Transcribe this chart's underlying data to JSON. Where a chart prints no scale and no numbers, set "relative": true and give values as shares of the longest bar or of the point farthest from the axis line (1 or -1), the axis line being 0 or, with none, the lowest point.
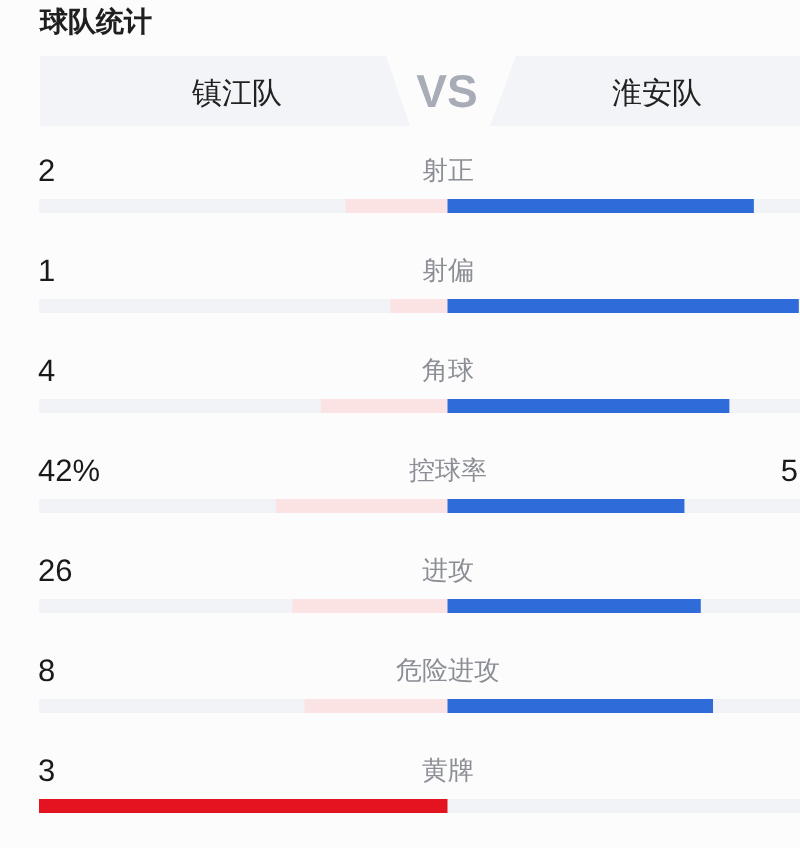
{
  "chart_data": [
    {
      "type": "other",
      "title": "球队统计",
      "annotations": [
        "镇江队",
        "VS",
        "淮安队"
      ]
    },
    {
      "type": "bar",
      "orientation": "horizontal",
      "relative": true,
      "stacked": true,
      "grid": "y",
      "categories": [
        "射正",
        "射偏",
        "角球",
        "控球率",
        "进攻",
        "危险进攻",
        "黄牌"
      ],
      "series": [
        {
          "colors": [
            "#fbe3e3",
            "#fbe3e3",
            "#fbe3e3",
            "#fbe3e3",
            "#fbe3e3",
            "#fbe3e3",
            "#e3131f"
          ],
          "values": [
            -0.25,
            -0.14,
            -0.31,
            -0.42,
            -0.38,
            -0.35,
            -1
          ]
        },
        {
          "color": "#2f6bd9",
          "values": [
            0.75,
            0.86,
            0.69,
            0.58,
            0.62,
            0.65,
            0
          ]
        }
      ],
      "annotations": [
        "2",
        "1",
        "4",
        "42%",
        "26",
        "8",
        "3",
        "5"
      ]
    }
  ]
}
